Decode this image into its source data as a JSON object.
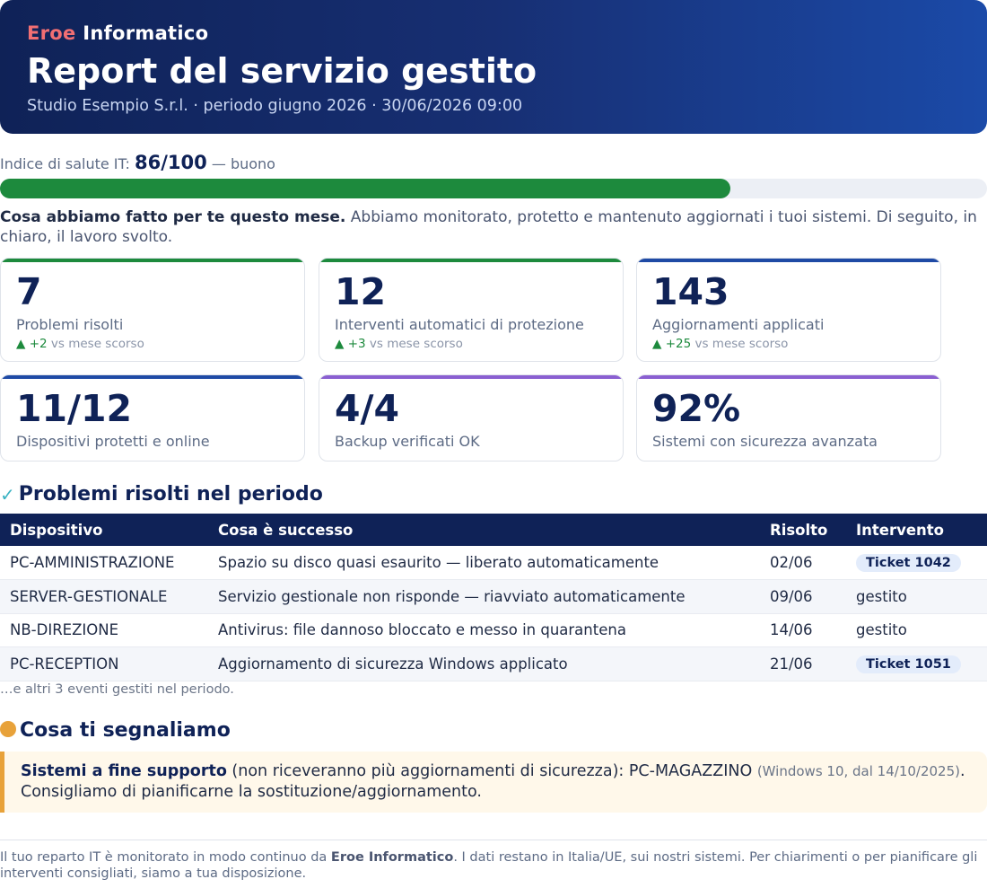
{
  "header": {
    "brand_part1": "Eroe",
    "brand_part2": "Informatico",
    "title": "Report del servizio gestito",
    "subtitle": "Studio Esempio S.r.l. · periodo giugno 2026 · 30/06/2026 09:00"
  },
  "health": {
    "label": "Indice di salute IT:",
    "score": "86/100",
    "rating": "— buono",
    "value": 86,
    "max": 100,
    "bar_color": "#1d8a3d"
  },
  "intro": {
    "bold": "Cosa abbiamo fatto per te questo mese.",
    "text": "Abbiamo monitorato, protetto e mantenuto aggiornati i tuoi sistemi. Di seguito, in chiaro, il lavoro svolto."
  },
  "cards": [
    {
      "value": "7",
      "label": "Problemi risolti",
      "delta_arrow": "▲",
      "delta_value": "+2",
      "delta_text": "vs mese scorso",
      "accent": "#1d8a3d"
    },
    {
      "value": "12",
      "label": "Interventi automatici di protezione",
      "delta_arrow": "▲",
      "delta_value": "+3",
      "delta_text": "vs mese scorso",
      "accent": "#1d8a3d"
    },
    {
      "value": "143",
      "label": "Aggiornamenti applicati",
      "delta_arrow": "▲",
      "delta_value": "+25",
      "delta_text": "vs mese scorso",
      "accent": "#1f4aa5"
    },
    {
      "value": "11/12",
      "label": "Dispositivi protetti e online",
      "accent": "#1f4aa5"
    },
    {
      "value": "4/4",
      "label": "Backup verificati OK",
      "accent": "#8a5fd1"
    },
    {
      "value": "92%",
      "label": "Sistemi con sicurezza avanzata",
      "accent": "#8a5fd1"
    }
  ],
  "resolved": {
    "title": "Problemi risolti nel periodo",
    "columns": [
      "Dispositivo",
      "Cosa è successo",
      "Risolto",
      "Intervento"
    ],
    "rows": [
      {
        "device": "PC-AMMINISTRAZIONE",
        "what": "Spazio su disco quasi esaurito — liberato automaticamente",
        "date": "02/06",
        "action": "Ticket 1042",
        "is_ticket": true
      },
      {
        "device": "SERVER-GESTIONALE",
        "what": "Servizio gestionale non risponde — riavviato automaticamente",
        "date": "09/06",
        "action": "gestito",
        "is_ticket": false
      },
      {
        "device": "NB-DIREZIONE",
        "what": "Antivirus: file dannoso bloccato e messo in quarantena",
        "date": "14/06",
        "action": "gestito",
        "is_ticket": false
      },
      {
        "device": "PC-RECEPTION",
        "what": "Aggiornamento di sicurezza Windows applicato",
        "date": "21/06",
        "action": "Ticket 1051",
        "is_ticket": true
      }
    ],
    "more": "…e altri 3 eventi gestiti nel periodo."
  },
  "notices": {
    "title": "Cosa ti segnaliamo",
    "alert_bold": "Sistemi a fine supporto",
    "alert_text": "(non riceveranno più aggiornamenti di sicurezza): PC-MAGAZZINO",
    "alert_muted": "(Windows 10, dal 14/10/2025)",
    "alert_end": ". Consigliamo di pianificarne la sostituzione/aggiornamento."
  },
  "footer": {
    "pre": "Il tuo reparto IT è monitorato in modo continuo da",
    "brand": "Eroe Informatico",
    "post": ". I dati restano in Italia/UE, sui nostri sistemi. Per chiarimenti o per pianificare gli interventi consigliati, siamo a tua disposizione."
  }
}
